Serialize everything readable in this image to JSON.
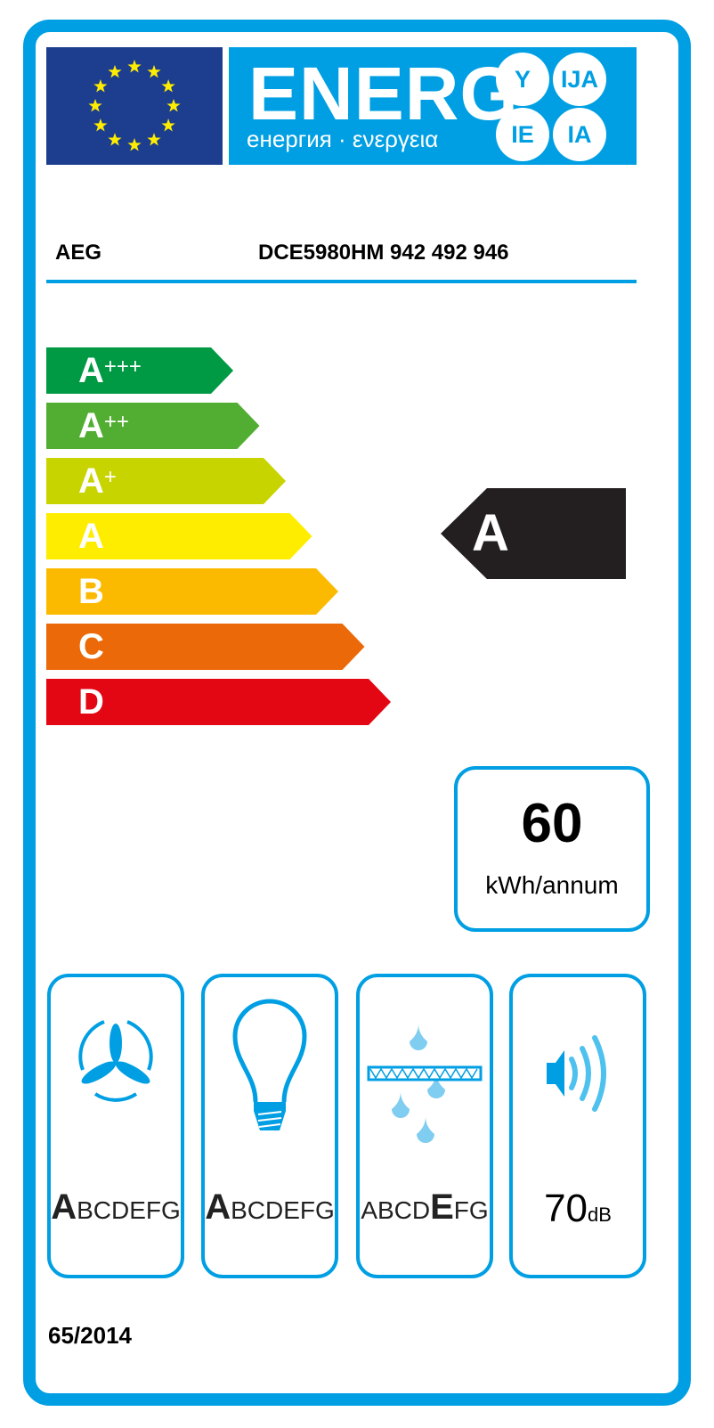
{
  "header": {
    "energy_word": "ENERG",
    "subtitle": "енергия · ενεργεια",
    "suffixes": [
      "Y",
      "IJA",
      "IE",
      "IA"
    ],
    "colors": {
      "blue": "#009fe3",
      "eu_flag": "#1d3e8f",
      "stars": "#ffed00"
    }
  },
  "product": {
    "supplier": "AEG",
    "model": "DCE5980HM  942 492 946"
  },
  "scale": [
    {
      "letter": "A",
      "plus": "+++",
      "color": "#009a44"
    },
    {
      "letter": "A",
      "plus": "++",
      "color": "#52ae32"
    },
    {
      "letter": "A",
      "plus": "+",
      "color": "#c8d400"
    },
    {
      "letter": "A",
      "plus": "",
      "color": "#ffed00"
    },
    {
      "letter": "B",
      "plus": "",
      "color": "#fbba00"
    },
    {
      "letter": "C",
      "plus": "",
      "color": "#eb6909"
    },
    {
      "letter": "D",
      "plus": "",
      "color": "#e30613"
    }
  ],
  "rating": {
    "class": "A",
    "color": "#231f20"
  },
  "consumption": {
    "value": "60",
    "unit": "kWh/annum"
  },
  "pictograms": [
    {
      "icon": "fan-icon",
      "highlight": "A",
      "rest": "BCDEFG"
    },
    {
      "icon": "lightbulb-icon",
      "highlight": "A",
      "rest": "BCDEFG"
    },
    {
      "icon": "grease-filter-icon",
      "before": "ABCD",
      "highlight": "E",
      "rest": "FG"
    },
    {
      "icon": "speaker-icon",
      "value": "70",
      "unit": "dB"
    }
  ],
  "regulation": "65/2014"
}
